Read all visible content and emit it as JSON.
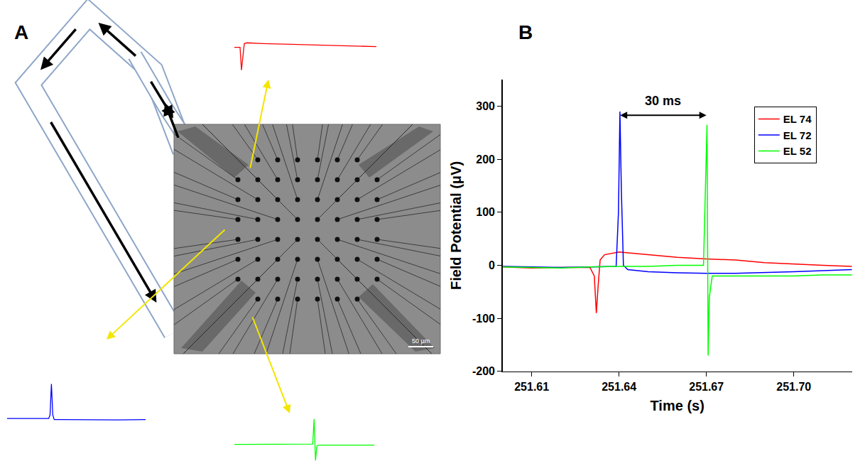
{
  "chart_data": {
    "panel": "B",
    "type": "line",
    "x_label": "Time (s)",
    "y_label": "Field Potential (μV)",
    "xlim": [
      251.6,
      251.72
    ],
    "xticks": [
      251.61,
      251.64,
      251.67,
      {
        "value": 251.7,
        "label": "251.70"
      }
    ],
    "ylim": [
      -200,
      350
    ],
    "yticks": [
      -200,
      -100,
      0,
      100,
      200,
      300
    ],
    "grid": false,
    "legend": "upper right",
    "annotations": [
      {
        "text": "30 ms",
        "x0": 251.64,
        "x1": 251.67,
        "y": 283
      }
    ],
    "series": [
      {
        "name": "EL 74",
        "color": "#ff0000",
        "x": [
          251.6,
          251.61,
          251.62,
          251.63,
          251.6315,
          251.6322,
          251.6328,
          251.6335,
          251.635,
          251.64,
          251.65,
          251.66,
          251.67,
          251.68,
          251.69,
          251.7,
          251.71,
          251.72
        ],
        "values": [
          -3,
          -5,
          -4,
          -4,
          -20,
          -90,
          -40,
          10,
          20,
          25,
          20,
          15,
          12,
          10,
          5,
          2,
          0,
          -2
        ]
      },
      {
        "name": "EL 72",
        "color": "#0000ff",
        "x": [
          251.6,
          251.61,
          251.62,
          251.63,
          251.639,
          251.6398,
          251.6403,
          251.6408,
          251.6415,
          251.643,
          251.65,
          251.66,
          251.67,
          251.68,
          251.69,
          251.7,
          251.71,
          251.72
        ],
        "values": [
          -2,
          -3,
          -4,
          -3,
          -2,
          100,
          290,
          140,
          0,
          -8,
          -12,
          -14,
          -15,
          -15,
          -14,
          -12,
          -10,
          -8
        ]
      },
      {
        "name": "EL 52",
        "color": "#00ff00",
        "x": [
          251.6,
          251.61,
          251.62,
          251.63,
          251.64,
          251.65,
          251.66,
          251.669,
          251.6698,
          251.6702,
          251.6706,
          251.671,
          251.672,
          251.68,
          251.69,
          251.7,
          251.71,
          251.72
        ],
        "values": [
          -3,
          -4,
          -5,
          -3,
          -2,
          -2,
          0,
          0,
          160,
          265,
          -170,
          -60,
          -20,
          -20,
          -20,
          -20,
          -18,
          -18
        ]
      }
    ]
  },
  "panel_a": {
    "panel": "A",
    "scale_bar": "50 µm",
    "insets": [
      {
        "type": "line",
        "tick_labels": false,
        "color": "#ff0000",
        "xlim": [
          0,
          100
        ],
        "ylim": [
          -70,
          20
        ],
        "x": [
          0,
          4,
          5,
          6,
          7,
          9,
          20,
          40,
          60,
          80,
          100
        ],
        "values": [
          0,
          0,
          -60,
          -20,
          10,
          12,
          10,
          8,
          6,
          4,
          2
        ]
      },
      {
        "type": "line",
        "tick_labels": false,
        "color": "#0000ff",
        "xlim": [
          0,
          100
        ],
        "ylim": [
          -10,
          105
        ],
        "x": [
          0,
          30,
          31,
          32,
          33,
          34,
          40,
          60,
          80,
          100
        ],
        "values": [
          0,
          0,
          10,
          100,
          10,
          -3,
          -3,
          -4,
          -4,
          -3
        ]
      },
      {
        "type": "line",
        "tick_labels": false,
        "color": "#00ff00",
        "xlim": [
          0,
          100
        ],
        "ylim": [
          -65,
          100
        ],
        "x": [
          0,
          50,
          56,
          57,
          58,
          59,
          60,
          70,
          100
        ],
        "values": [
          0,
          0,
          1,
          95,
          -60,
          -5,
          -3,
          -3,
          -3
        ]
      }
    ]
  }
}
